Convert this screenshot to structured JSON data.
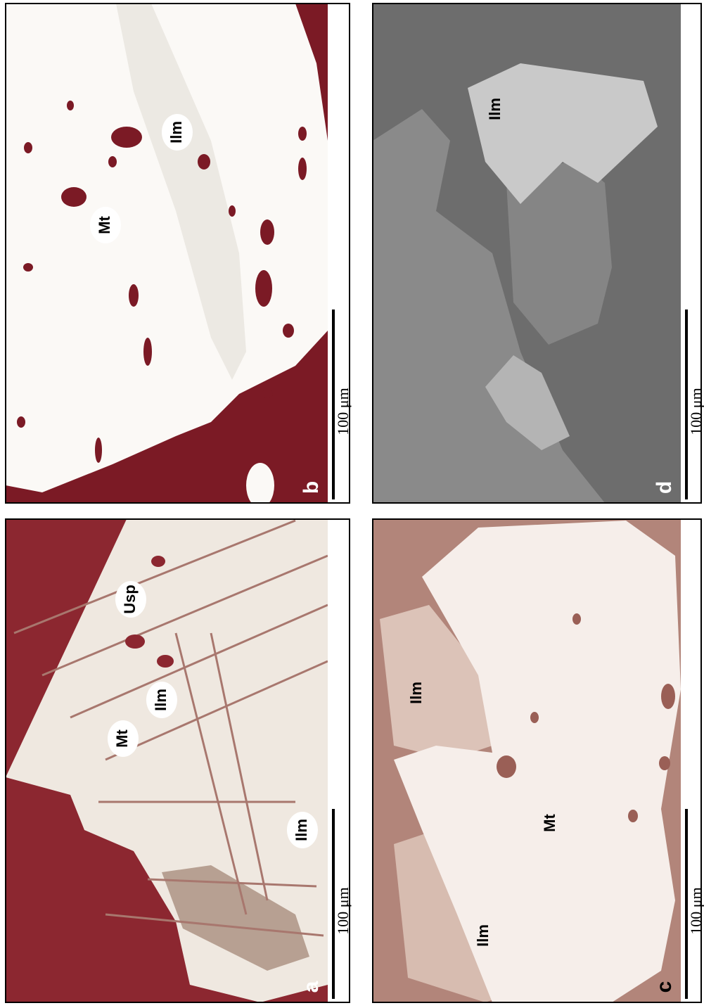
{
  "panels": [
    {
      "letter": "b",
      "scale_bar": "100 μm",
      "labels": [
        "Ilm",
        "Mt"
      ]
    },
    {
      "letter": "a",
      "scale_bar": "100 μm",
      "labels": [
        "Usp",
        "Ilm",
        "Mt",
        "Ilm"
      ]
    },
    {
      "letter": "d",
      "scale_bar": "100 μm",
      "labels": [
        "Ilm"
      ]
    },
    {
      "letter": "c",
      "scale_bar": "100 μm",
      "labels": [
        "Ilm",
        "Mt",
        "Ilm"
      ]
    }
  ]
}
